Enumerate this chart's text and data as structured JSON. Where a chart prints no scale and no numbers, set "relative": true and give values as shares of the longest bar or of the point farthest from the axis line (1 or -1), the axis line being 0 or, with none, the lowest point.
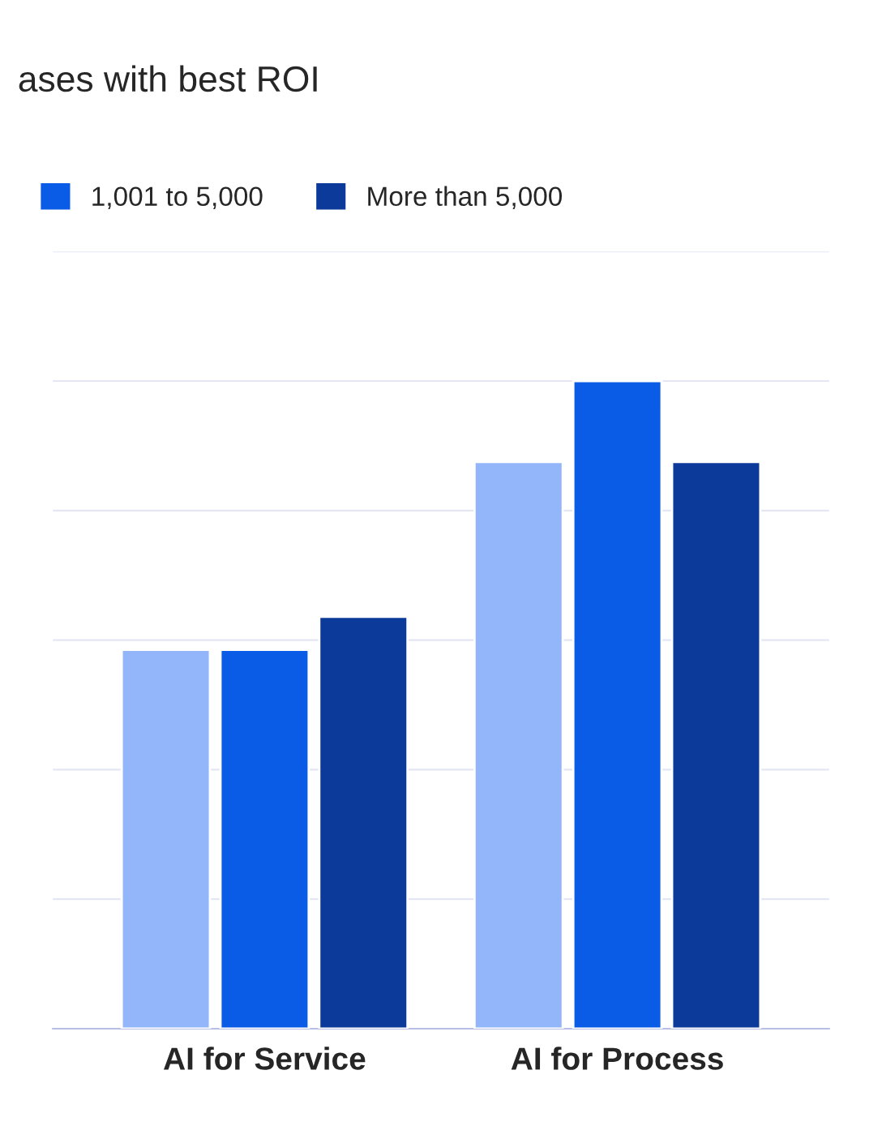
{
  "chart_data": {
    "type": "bar",
    "title": "ases with best ROI",
    "relative": true,
    "grid": "y",
    "legend": "top left",
    "categories": [
      "AI for Service",
      "AI for Process"
    ],
    "series": [
      {
        "color": "#93b6fb",
        "values": [
          0.585,
          0.875
        ]
      },
      {
        "name": "1,001 to 5,000",
        "color": "#0a5ce6",
        "values": [
          0.585,
          1
        ]
      },
      {
        "name": "More than 5,000",
        "color": "#0b3a9a",
        "values": [
          0.636,
          0.875
        ]
      }
    ]
  }
}
